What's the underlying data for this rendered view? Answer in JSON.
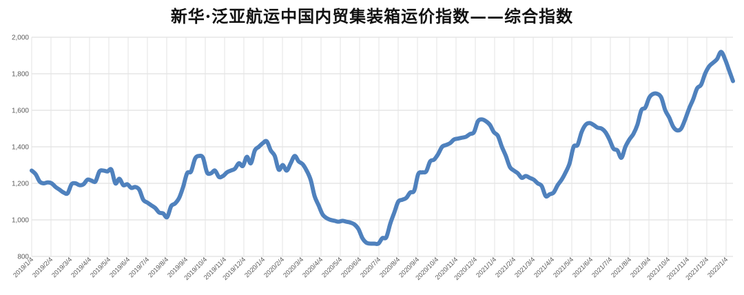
{
  "chart_data": {
    "type": "line",
    "title": "新华·泛亚航运中国内贸集装箱运价指数——综合指数",
    "xlabel": "",
    "ylabel": "",
    "ylim": [
      800,
      2000
    ],
    "yticks": [
      800,
      1000,
      1200,
      1400,
      1600,
      1800,
      2000
    ],
    "ytick_labels": [
      "800",
      "1,000",
      "1,200",
      "1,400",
      "1,600",
      "1,800",
      "2,000"
    ],
    "grid": true,
    "legend": "none",
    "x_tick_labels": [
      "2019/1/4",
      "2019/2/4",
      "2019/3/4",
      "2019/4/4",
      "2019/5/4",
      "2019/6/4",
      "2019/7/4",
      "2019/8/4",
      "2019/9/4",
      "2019/10/4",
      "2019/11/4",
      "2019/12/4",
      "2020/1/4",
      "2020/2/4",
      "2020/3/4",
      "2020/4/4",
      "2020/5/4",
      "2020/6/4",
      "2020/7/4",
      "2020/8/4",
      "2020/9/4",
      "2020/10/4",
      "2020/11/4",
      "2020/12/4",
      "2021/1/4",
      "2021/2/4",
      "2021/3/4",
      "2021/4/4",
      "2021/5/4",
      "2021/6/4",
      "2021/7/4",
      "2021/8/4",
      "2021/9/4",
      "2021/10/4",
      "2021/11/4",
      "2021/12/4",
      "2022/1/4"
    ],
    "series": [
      {
        "color": "#4F81BD",
        "values": [
          1270,
          1250,
          1210,
          1200,
          1205,
          1200,
          1180,
          1165,
          1150,
          1145,
          1195,
          1200,
          1190,
          1195,
          1220,
          1215,
          1210,
          1265,
          1270,
          1265,
          1275,
          1200,
          1225,
          1190,
          1195,
          1175,
          1180,
          1165,
          1110,
          1095,
          1080,
          1065,
          1040,
          1035,
          1015,
          1075,
          1090,
          1120,
          1180,
          1255,
          1265,
          1335,
          1350,
          1340,
          1260,
          1255,
          1270,
          1235,
          1240,
          1260,
          1270,
          1280,
          1310,
          1295,
          1345,
          1310,
          1380,
          1400,
          1420,
          1430,
          1380,
          1350,
          1275,
          1300,
          1270,
          1310,
          1350,
          1320,
          1305,
          1270,
          1220,
          1130,
          1080,
          1030,
          1010,
          1000,
          995,
          990,
          995,
          990,
          985,
          975,
          950,
          900,
          875,
          870,
          870,
          870,
          900,
          905,
          980,
          1040,
          1100,
          1110,
          1120,
          1150,
          1160,
          1250,
          1260,
          1265,
          1320,
          1330,
          1360,
          1400,
          1410,
          1420,
          1440,
          1445,
          1450,
          1455,
          1470,
          1480,
          1540,
          1550,
          1540,
          1520,
          1480,
          1460,
          1400,
          1350,
          1290,
          1270,
          1255,
          1230,
          1240,
          1230,
          1220,
          1200,
          1185,
          1130,
          1140,
          1150,
          1190,
          1220,
          1260,
          1310,
          1400,
          1410,
          1480,
          1520,
          1530,
          1520,
          1505,
          1500,
          1480,
          1440,
          1390,
          1380,
          1340,
          1400,
          1440,
          1470,
          1520,
          1600,
          1615,
          1670,
          1690,
          1690,
          1670,
          1600,
          1560,
          1510,
          1490,
          1500,
          1550,
          1610,
          1660,
          1720,
          1740,
          1800,
          1840,
          1860,
          1880,
          1920,
          1880,
          1820,
          1760
        ]
      }
    ]
  }
}
